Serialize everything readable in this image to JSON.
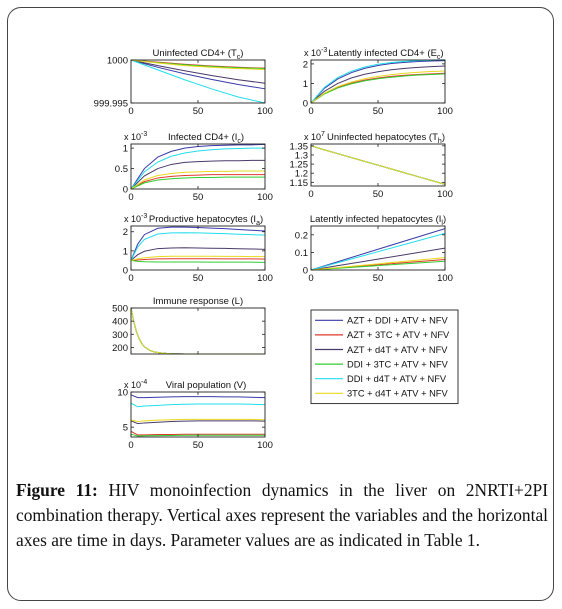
{
  "figure_caption": {
    "label": "Figure 11:",
    "text": "HIV monoinfection dynamics in the liver on 2NRTI+2PI combination therapy. Vertical axes represent the variables and the horizontal axes are time in days. Parameter values are as indicated in Table 1."
  },
  "legend": {
    "entries": [
      {
        "label": "AZT + DDI + ATV + NFV",
        "color": "#3a3aa8"
      },
      {
        "label": "AZT + 3TC + ATV + NFV",
        "color": "#e03a2a"
      },
      {
        "label": "AZT + d4T + ATV + NFV",
        "color": "#4a3a6a"
      },
      {
        "label": "DDI + 3TC + ATV + NFV",
        "color": "#33cc33"
      },
      {
        "label": "DDI + d4T + ATV + NFV",
        "color": "#22dded"
      },
      {
        "label": "3TC + d4T + ATV + NFV",
        "color": "#e8d820"
      }
    ]
  },
  "chart_data": [
    {
      "type": "line",
      "title": "Uninfected CD4+ (T",
      "title_sub": "c",
      "title_close": ")",
      "xlim": [
        0,
        100
      ],
      "ylim": [
        999.995,
        1000
      ],
      "xticks": [
        0,
        50,
        100
      ],
      "xtick_labels": [
        "0",
        "50",
        "100"
      ],
      "yticks": [
        999.995,
        1000
      ],
      "ytick_labels": [
        "999.995",
        "1000"
      ],
      "exponent_label": "",
      "x": [
        0,
        20,
        40,
        60,
        80,
        100
      ],
      "series": [
        {
          "color": "#3a3aa8",
          "values": [
            1000,
            999.99915,
            999.9984,
            999.99775,
            999.99715,
            999.99665
          ]
        },
        {
          "color": "#e03a2a",
          "values": [
            1000,
            999.99975,
            999.9995,
            999.9993,
            999.99915,
            999.99905
          ]
        },
        {
          "color": "#4a3a6a",
          "values": [
            1000,
            999.99935,
            999.99875,
            999.9982,
            999.9977,
            999.9973
          ]
        },
        {
          "color": "#33cc33",
          "values": [
            1000,
            999.9997,
            999.99945,
            999.99925,
            999.9991,
            999.999
          ]
        },
        {
          "color": "#22dded",
          "values": [
            1000,
            999.99885,
            999.9977,
            999.99665,
            999.9957,
            999.995
          ]
        },
        {
          "color": "#e8d820",
          "values": [
            1000,
            999.99965,
            999.99935,
            999.99915,
            999.999,
            999.9989
          ]
        }
      ]
    },
    {
      "type": "line",
      "title": "Latently infected CD4+ (E",
      "title_sub": "c",
      "title_close": ")",
      "xlim": [
        0,
        100
      ],
      "ylim": [
        0,
        2.2
      ],
      "xticks": [
        0,
        50,
        100
      ],
      "xtick_labels": [
        "0",
        "50",
        "100"
      ],
      "yticks": [
        0,
        1,
        2
      ],
      "ytick_labels": [
        "0",
        "1",
        "2"
      ],
      "exponent_label": "x 10",
      "exponent_power": "-3",
      "x": [
        0,
        10,
        20,
        30,
        40,
        50,
        60,
        70,
        80,
        90,
        100
      ],
      "series": [
        {
          "color": "#3a3aa8",
          "values": [
            0,
            0.75,
            1.23,
            1.55,
            1.77,
            1.92,
            2.02,
            2.08,
            2.12,
            2.15,
            2.17
          ]
        },
        {
          "color": "#e03a2a",
          "values": [
            0,
            0.48,
            0.8,
            1.02,
            1.17,
            1.28,
            1.36,
            1.42,
            1.46,
            1.49,
            1.52
          ]
        },
        {
          "color": "#4a3a6a",
          "values": [
            0,
            0.6,
            1.0,
            1.28,
            1.47,
            1.6,
            1.7,
            1.77,
            1.82,
            1.86,
            1.89
          ]
        },
        {
          "color": "#33cc33",
          "values": [
            0,
            0.46,
            0.77,
            0.98,
            1.13,
            1.24,
            1.32,
            1.38,
            1.43,
            1.46,
            1.49
          ]
        },
        {
          "color": "#22dded",
          "values": [
            0,
            0.8,
            1.3,
            1.62,
            1.84,
            1.98,
            2.07,
            2.13,
            2.17,
            2.19,
            2.21
          ]
        },
        {
          "color": "#e8d820",
          "values": [
            0,
            0.5,
            0.84,
            1.07,
            1.24,
            1.36,
            1.45,
            1.52,
            1.57,
            1.61,
            1.64
          ]
        }
      ]
    },
    {
      "type": "line",
      "title": "Infected CD4+ (I",
      "title_sub": "c",
      "title_close": ")",
      "xlim": [
        0,
        100
      ],
      "ylim": [
        0,
        1.1
      ],
      "xticks": [
        0,
        50,
        100
      ],
      "xtick_labels": [
        "0",
        "50",
        "100"
      ],
      "yticks": [
        0,
        0.5,
        1
      ],
      "ytick_labels": [
        "0",
        "0.5",
        "1"
      ],
      "exponent_label": "x 10",
      "exponent_power": "-3",
      "x": [
        0,
        10,
        20,
        30,
        40,
        50,
        60,
        70,
        80,
        90,
        100
      ],
      "series": [
        {
          "color": "#3a3aa8",
          "values": [
            0,
            0.5,
            0.78,
            0.92,
            1.0,
            1.04,
            1.06,
            1.07,
            1.08,
            1.08,
            1.09
          ]
        },
        {
          "color": "#e03a2a",
          "values": [
            0,
            0.18,
            0.27,
            0.31,
            0.33,
            0.34,
            0.35,
            0.35,
            0.35,
            0.35,
            0.35
          ]
        },
        {
          "color": "#4a3a6a",
          "values": [
            0,
            0.32,
            0.5,
            0.6,
            0.65,
            0.67,
            0.68,
            0.69,
            0.69,
            0.7,
            0.7
          ]
        },
        {
          "color": "#33cc33",
          "values": [
            0,
            0.15,
            0.22,
            0.25,
            0.27,
            0.28,
            0.28,
            0.29,
            0.29,
            0.29,
            0.29
          ]
        },
        {
          "color": "#22dded",
          "values": [
            0,
            0.42,
            0.66,
            0.8,
            0.88,
            0.93,
            0.96,
            0.98,
            0.99,
            1.0,
            1.0
          ]
        },
        {
          "color": "#e8d820",
          "values": [
            0,
            0.22,
            0.33,
            0.38,
            0.41,
            0.42,
            0.43,
            0.43,
            0.44,
            0.44,
            0.44
          ]
        }
      ]
    },
    {
      "type": "line",
      "title": "Uninfected hepatocytes (T",
      "title_sub": "h",
      "title_close": ")",
      "xlim": [
        0,
        100
      ],
      "ylim": [
        1.13,
        1.36
      ],
      "xticks": [
        0,
        50,
        100
      ],
      "xtick_labels": [
        "0",
        "50",
        "100"
      ],
      "yticks": [
        1.15,
        1.2,
        1.25,
        1.3,
        1.35
      ],
      "ytick_labels": [
        "1.15",
        "1.2",
        "1.25",
        "1.3",
        "1.35"
      ],
      "exponent_label": "x 10",
      "exponent_power": "7",
      "x": [
        0,
        10,
        20,
        30,
        40,
        50,
        60,
        70,
        80,
        90,
        100
      ],
      "series": [
        {
          "color": "#3a3aa8",
          "values": [
            1.35,
            1.328,
            1.307,
            1.286,
            1.265,
            1.244,
            1.223,
            1.202,
            1.181,
            1.16,
            1.139
          ]
        },
        {
          "color": "#e03a2a",
          "values": [
            1.35,
            1.328,
            1.307,
            1.286,
            1.265,
            1.244,
            1.223,
            1.202,
            1.181,
            1.16,
            1.139
          ]
        },
        {
          "color": "#4a3a6a",
          "values": [
            1.35,
            1.328,
            1.307,
            1.286,
            1.265,
            1.244,
            1.223,
            1.202,
            1.181,
            1.16,
            1.139
          ]
        },
        {
          "color": "#33cc33",
          "values": [
            1.35,
            1.328,
            1.307,
            1.286,
            1.265,
            1.244,
            1.223,
            1.202,
            1.181,
            1.16,
            1.139
          ]
        },
        {
          "color": "#22dded",
          "values": [
            1.35,
            1.328,
            1.307,
            1.286,
            1.265,
            1.244,
            1.223,
            1.202,
            1.181,
            1.16,
            1.139
          ]
        },
        {
          "color": "#e8d820",
          "values": [
            1.35,
            1.328,
            1.307,
            1.286,
            1.265,
            1.244,
            1.223,
            1.202,
            1.181,
            1.16,
            1.139
          ]
        }
      ]
    },
    {
      "type": "line",
      "title": "Productive hepatocytes (I",
      "title_sub": "a",
      "title_close": ")",
      "xlim": [
        0,
        100
      ],
      "ylim": [
        0,
        2.3
      ],
      "xticks": [
        0,
        50,
        100
      ],
      "xtick_labels": [
        "0",
        "50",
        "100"
      ],
      "yticks": [
        0,
        1,
        2
      ],
      "ytick_labels": [
        "0",
        "1",
        "2"
      ],
      "exponent_label": "x 10",
      "exponent_power": "-3",
      "x": [
        0,
        5,
        10,
        20,
        30,
        40,
        50,
        60,
        70,
        80,
        90,
        100
      ],
      "series": [
        {
          "color": "#3a3aa8",
          "values": [
            0.5,
            1.35,
            1.85,
            2.18,
            2.24,
            2.24,
            2.22,
            2.19,
            2.16,
            2.12,
            2.08,
            2.04
          ]
        },
        {
          "color": "#e03a2a",
          "values": [
            0.5,
            0.52,
            0.55,
            0.58,
            0.59,
            0.59,
            0.59,
            0.59,
            0.58,
            0.58,
            0.58,
            0.57
          ]
        },
        {
          "color": "#4a3a6a",
          "values": [
            0.5,
            0.8,
            0.98,
            1.12,
            1.15,
            1.16,
            1.15,
            1.14,
            1.13,
            1.11,
            1.1,
            1.08
          ]
        },
        {
          "color": "#33cc33",
          "values": [
            0.5,
            0.45,
            0.43,
            0.42,
            0.42,
            0.42,
            0.42,
            0.41,
            0.41,
            0.41,
            0.41,
            0.4
          ]
        },
        {
          "color": "#22dded",
          "values": [
            0.5,
            1.2,
            1.6,
            1.88,
            1.94,
            1.95,
            1.94,
            1.92,
            1.9,
            1.87,
            1.85,
            1.82
          ]
        },
        {
          "color": "#e8d820",
          "values": [
            0.5,
            0.58,
            0.64,
            0.7,
            0.72,
            0.72,
            0.72,
            0.72,
            0.71,
            0.71,
            0.7,
            0.7
          ]
        }
      ]
    },
    {
      "type": "line",
      "title": "Latently infected hepatocytes (I",
      "title_sub": "l",
      "title_close": ")",
      "xlim": [
        0,
        100
      ],
      "ylim": [
        0,
        0.25
      ],
      "xticks": [
        0,
        50,
        100
      ],
      "xtick_labels": [
        "0",
        "50",
        "100"
      ],
      "yticks": [
        0,
        0.1,
        0.2
      ],
      "ytick_labels": [
        "0",
        "0.1",
        "0.2"
      ],
      "exponent_label": "",
      "x": [
        0,
        50,
        100
      ],
      "series": [
        {
          "color": "#3a3aa8",
          "values": [
            0,
            0.118,
            0.235
          ]
        },
        {
          "color": "#e03a2a",
          "values": [
            0,
            0.03,
            0.06
          ]
        },
        {
          "color": "#4a3a6a",
          "values": [
            0,
            0.062,
            0.124
          ]
        },
        {
          "color": "#33cc33",
          "values": [
            0,
            0.025,
            0.05
          ]
        },
        {
          "color": "#22dded",
          "values": [
            0,
            0.104,
            0.208
          ]
        },
        {
          "color": "#e8d820",
          "values": [
            0,
            0.035,
            0.07
          ]
        }
      ]
    },
    {
      "type": "line",
      "title": "Immune response (L)",
      "title_sub": "",
      "title_close": "",
      "xlim": [
        0,
        100
      ],
      "ylim": [
        150,
        500
      ],
      "xticks": [
        0,
        50,
        100
      ],
      "xtick_labels": [
        "",
        "",
        ""
      ],
      "yticks": [
        200,
        300,
        400,
        500
      ],
      "ytick_labels": [
        "200",
        "300",
        "400",
        "500"
      ],
      "exponent_label": "",
      "x": [
        0,
        2,
        4,
        6,
        8,
        10,
        14,
        18,
        24,
        30,
        40,
        60,
        80,
        100
      ],
      "series": [
        {
          "color": "#3a3aa8",
          "values": [
            500,
            398,
            322,
            268,
            230,
            205,
            177,
            164,
            156,
            152,
            150,
            150,
            150,
            150
          ]
        },
        {
          "color": "#e03a2a",
          "values": [
            500,
            398,
            322,
            268,
            230,
            205,
            177,
            164,
            156,
            152,
            150,
            150,
            150,
            150
          ]
        },
        {
          "color": "#4a3a6a",
          "values": [
            500,
            398,
            322,
            268,
            230,
            205,
            177,
            164,
            156,
            152,
            150,
            150,
            150,
            150
          ]
        },
        {
          "color": "#33cc33",
          "values": [
            500,
            398,
            322,
            268,
            230,
            205,
            177,
            164,
            156,
            152,
            150,
            150,
            150,
            150
          ]
        },
        {
          "color": "#22dded",
          "values": [
            500,
            398,
            322,
            268,
            230,
            205,
            177,
            164,
            156,
            152,
            150,
            150,
            150,
            150
          ]
        },
        {
          "color": "#e8d820",
          "values": [
            500,
            398,
            322,
            268,
            230,
            205,
            177,
            164,
            156,
            152,
            150,
            150,
            150,
            150
          ]
        }
      ]
    },
    {
      "type": "line",
      "title": "Viral population (V)",
      "title_sub": "",
      "title_close": "",
      "xlim": [
        0,
        100
      ],
      "ylim": [
        3.6,
        10
      ],
      "xticks": [
        0,
        50,
        100
      ],
      "xtick_labels": [
        "0",
        "50",
        "100"
      ],
      "yticks": [
        5,
        10
      ],
      "ytick_labels": [
        "5",
        "10"
      ],
      "exponent_label": "x 10",
      "exponent_power": "-4",
      "x": [
        0,
        5,
        10,
        20,
        30,
        40,
        50,
        60,
        70,
        80,
        90,
        100
      ],
      "series": [
        {
          "color": "#3a3aa8",
          "values": [
            9.6,
            9.2,
            9.2,
            9.25,
            9.3,
            9.35,
            9.35,
            9.35,
            9.3,
            9.3,
            9.25,
            9.2
          ]
        },
        {
          "color": "#e03a2a",
          "values": [
            4.4,
            3.9,
            3.9,
            3.95,
            3.95,
            4.0,
            4.0,
            4.0,
            4.0,
            4.0,
            4.0,
            4.0
          ]
        },
        {
          "color": "#4a3a6a",
          "values": [
            5.9,
            5.5,
            5.6,
            5.7,
            5.8,
            5.85,
            5.9,
            5.9,
            5.9,
            5.9,
            5.9,
            5.85
          ]
        },
        {
          "color": "#33cc33",
          "values": [
            4.0,
            3.75,
            3.78,
            3.8,
            3.82,
            3.84,
            3.85,
            3.85,
            3.85,
            3.85,
            3.85,
            3.85
          ]
        },
        {
          "color": "#22dded",
          "values": [
            8.4,
            7.9,
            8.0,
            8.1,
            8.2,
            8.25,
            8.3,
            8.3,
            8.3,
            8.3,
            8.25,
            8.2
          ]
        },
        {
          "color": "#e8d820",
          "values": [
            6.0,
            5.8,
            5.9,
            6.0,
            6.05,
            6.1,
            6.1,
            6.1,
            6.1,
            6.1,
            6.1,
            6.05
          ]
        }
      ]
    }
  ]
}
